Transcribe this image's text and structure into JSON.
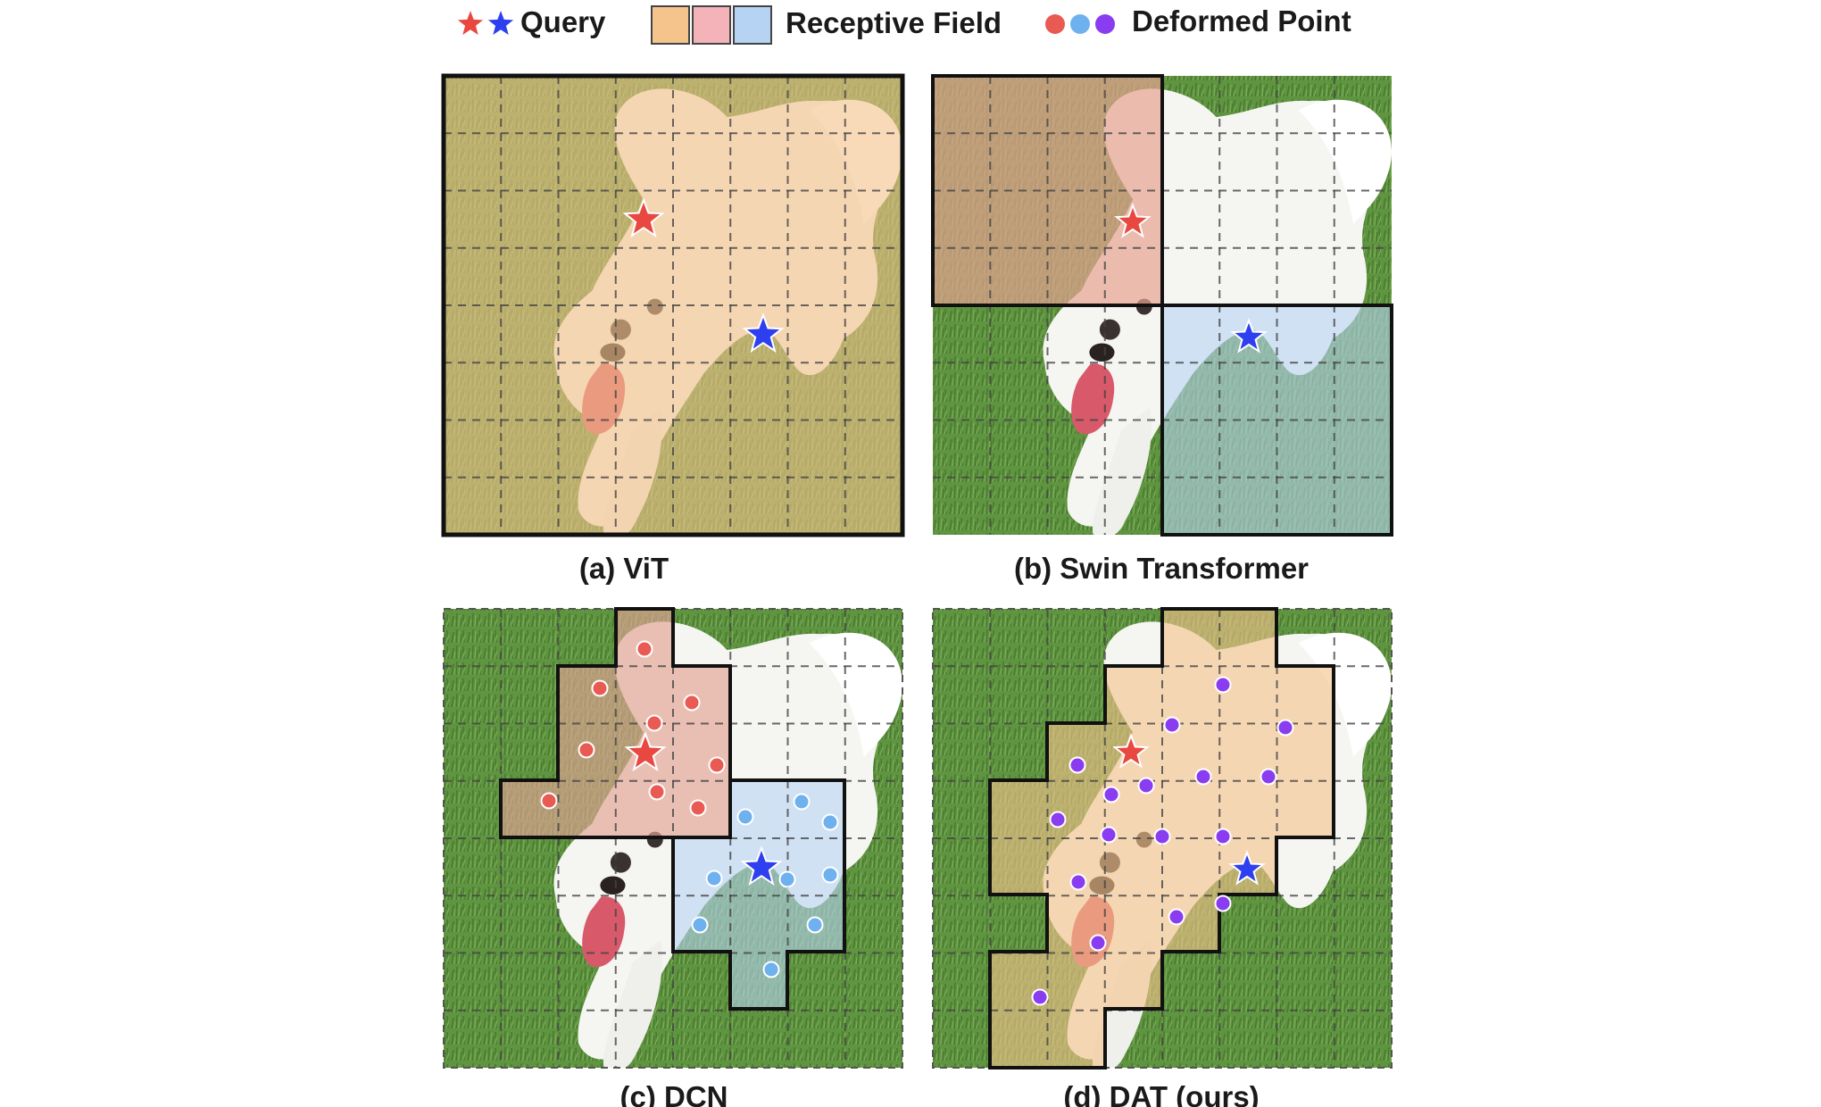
{
  "legend": {
    "query_label": "Query",
    "receptive_field_label": "Receptive Field",
    "deformed_point_label": "Deformed Point"
  },
  "panels": [
    {
      "id": "a",
      "caption": "(a) ViT"
    },
    {
      "id": "b",
      "caption": "(b) Swin Transformer"
    },
    {
      "id": "c",
      "caption": "(c) DCN"
    },
    {
      "id": "d",
      "caption": "(d) DAT (ours)"
    }
  ],
  "grid": {
    "cells": 8
  },
  "colors": {
    "query_red": "#e8483f",
    "query_blue": "#2e3ff0",
    "field_orange": "#f5c48c",
    "field_pink": "#f3b3b8",
    "field_blue": "#b7d3f4",
    "point_red": "#e85a52",
    "point_blue": "#6fb0ee",
    "point_purple": "#8a3cf0",
    "grass": "#5a8f3a",
    "dog": "#f4f4f1"
  },
  "icons": [
    "star-red-icon",
    "star-blue-icon",
    "dot-red-icon",
    "dot-blue-icon",
    "dot-purple-icon",
    "dog-image"
  ]
}
